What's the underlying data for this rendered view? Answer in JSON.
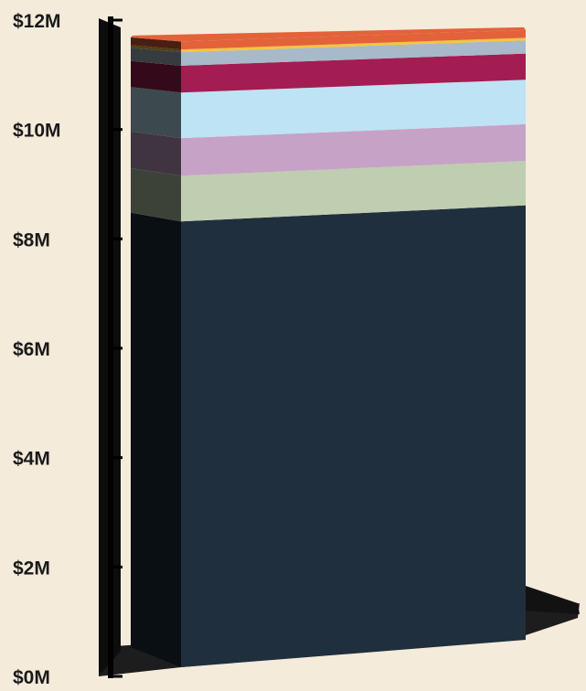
{
  "chart_data": {
    "type": "bar",
    "stacked": true,
    "title": "",
    "xlabel": "",
    "ylabel": "",
    "ylim": [
      0,
      12000000
    ],
    "yticks": [
      {
        "value": 0,
        "label": "$0M"
      },
      {
        "value": 2000000,
        "label": "$2M"
      },
      {
        "value": 4000000,
        "label": "$4M"
      },
      {
        "value": 6000000,
        "label": "$6M"
      },
      {
        "value": 8000000,
        "label": "$8M"
      },
      {
        "value": 10000000,
        "label": "$10M"
      },
      {
        "value": 12000000,
        "label": "$12M"
      }
    ],
    "grid": false,
    "legend": "none",
    "categories": [
      ""
    ],
    "series": [
      {
        "values": [
          8300000
        ],
        "color": "#1f2f3d"
      },
      {
        "values": [
          850000
        ],
        "color": "#bfcdb1"
      },
      {
        "values": [
          700000
        ],
        "color": "#c6a2c7"
      },
      {
        "values": [
          850000
        ],
        "color": "#bde3f4"
      },
      {
        "values": [
          500000
        ],
        "color": "#a31d52"
      },
      {
        "values": [
          250000
        ],
        "color": "#a8b9c9"
      },
      {
        "values": [
          50000
        ],
        "color": "#f3c541"
      },
      {
        "values": [
          150000
        ],
        "color": "#e3623a"
      }
    ]
  }
}
